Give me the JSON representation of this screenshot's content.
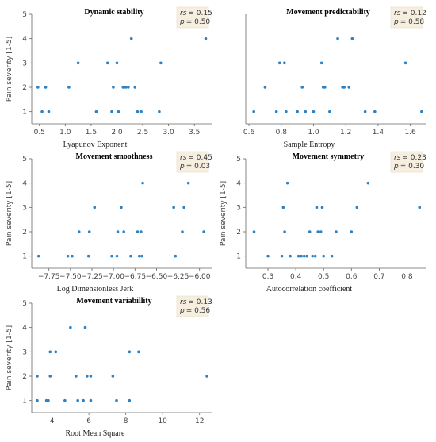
{
  "chart_data": [
    {
      "type": "scatter",
      "title": "Dynamic stability",
      "xlabel": "Lyapunov Exponent",
      "ylabel": "Pain severity [1-5]",
      "xlim": [
        0.35,
        3.85
      ],
      "ylim": [
        0.5,
        5
      ],
      "xticks": [
        "0.5",
        "1.0",
        "1.5",
        "2.0",
        "2.5",
        "3.0",
        "3.5"
      ],
      "xtick_values": [
        0.5,
        1.0,
        1.5,
        2.0,
        2.5,
        3.0,
        3.5
      ],
      "yticks": [
        "1",
        "2",
        "3",
        "4",
        "5"
      ],
      "stat_r_label": "rs",
      "stat_r_value": "= 0.15",
      "stat_p_label": "p",
      "stat_p_value": "= 0.50",
      "color": "#2e82c4",
      "points": [
        {
          "x": 0.47,
          "y": 2
        },
        {
          "x": 0.55,
          "y": 1
        },
        {
          "x": 0.62,
          "y": 2
        },
        {
          "x": 0.68,
          "y": 1
        },
        {
          "x": 1.07,
          "y": 2
        },
        {
          "x": 1.25,
          "y": 3
        },
        {
          "x": 1.6,
          "y": 1
        },
        {
          "x": 1.82,
          "y": 3
        },
        {
          "x": 1.9,
          "y": 1
        },
        {
          "x": 1.93,
          "y": 2
        },
        {
          "x": 2.0,
          "y": 3
        },
        {
          "x": 2.03,
          "y": 1
        },
        {
          "x": 2.12,
          "y": 2
        },
        {
          "x": 2.17,
          "y": 2
        },
        {
          "x": 2.22,
          "y": 2
        },
        {
          "x": 2.28,
          "y": 4
        },
        {
          "x": 2.35,
          "y": 2
        },
        {
          "x": 2.4,
          "y": 1
        },
        {
          "x": 2.47,
          "y": 1
        },
        {
          "x": 2.82,
          "y": 1
        },
        {
          "x": 2.85,
          "y": 3
        },
        {
          "x": 3.72,
          "y": 4
        }
      ]
    },
    {
      "type": "scatter",
      "title": "Movement predictability",
      "xlabel": "Sample Entropy",
      "ylabel": "",
      "xlim": [
        0.58,
        1.7
      ],
      "ylim": [
        0.5,
        5
      ],
      "xticks": [
        "0.6",
        "0.8",
        "1.0",
        "1.2",
        "1.4",
        "1.6"
      ],
      "xtick_values": [
        0.6,
        0.8,
        1.0,
        1.2,
        1.4,
        1.6
      ],
      "yticks": [],
      "stat_r_label": "rs",
      "stat_r_value": "= 0.12",
      "stat_p_label": "p",
      "stat_p_value": "= 0.58",
      "color": "#2e82c4",
      "points": [
        {
          "x": 0.63,
          "y": 1
        },
        {
          "x": 0.7,
          "y": 2
        },
        {
          "x": 0.77,
          "y": 1
        },
        {
          "x": 0.79,
          "y": 3
        },
        {
          "x": 0.82,
          "y": 3
        },
        {
          "x": 0.83,
          "y": 1
        },
        {
          "x": 0.9,
          "y": 1
        },
        {
          "x": 0.93,
          "y": 2
        },
        {
          "x": 0.95,
          "y": 1
        },
        {
          "x": 1.0,
          "y": 1
        },
        {
          "x": 1.05,
          "y": 3
        },
        {
          "x": 1.06,
          "y": 2
        },
        {
          "x": 1.07,
          "y": 2
        },
        {
          "x": 1.1,
          "y": 1
        },
        {
          "x": 1.15,
          "y": 4
        },
        {
          "x": 1.18,
          "y": 2
        },
        {
          "x": 1.19,
          "y": 2
        },
        {
          "x": 1.22,
          "y": 2
        },
        {
          "x": 1.24,
          "y": 4
        },
        {
          "x": 1.32,
          "y": 1
        },
        {
          "x": 1.38,
          "y": 1
        },
        {
          "x": 1.57,
          "y": 3
        },
        {
          "x": 1.67,
          "y": 1
        }
      ]
    },
    {
      "type": "scatter",
      "title": "Movement smoothness",
      "xlabel": "Log Dimensionless Jerk",
      "ylabel": "Pain severity [1-5]",
      "xlim": [
        -7.95,
        -5.85
      ],
      "ylim": [
        0.5,
        5
      ],
      "xticks": [
        "−7.75",
        "−7.50",
        "−7.25",
        "−7.00",
        "−6.75",
        "−6.50",
        "−6.25",
        "−6.00"
      ],
      "xtick_values": [
        -7.75,
        -7.5,
        -7.25,
        -7.0,
        -6.75,
        -6.5,
        -6.25,
        -6.0
      ],
      "yticks": [
        "1",
        "2",
        "3",
        "4",
        "5"
      ],
      "stat_r_label": "rs",
      "stat_r_value": "= 0.45",
      "stat_p_label": "p",
      "stat_p_value": "= 0.03",
      "color": "#2e82c4",
      "points": [
        {
          "x": -7.87,
          "y": 1
        },
        {
          "x": -7.53,
          "y": 1
        },
        {
          "x": -7.48,
          "y": 1
        },
        {
          "x": -7.4,
          "y": 2
        },
        {
          "x": -7.29,
          "y": 1
        },
        {
          "x": -7.28,
          "y": 2
        },
        {
          "x": -7.22,
          "y": 3
        },
        {
          "x": -7.02,
          "y": 1
        },
        {
          "x": -6.96,
          "y": 1
        },
        {
          "x": -6.95,
          "y": 2
        },
        {
          "x": -6.91,
          "y": 3
        },
        {
          "x": -6.88,
          "y": 2
        },
        {
          "x": -6.8,
          "y": 1
        },
        {
          "x": -6.72,
          "y": 2
        },
        {
          "x": -6.7,
          "y": 1
        },
        {
          "x": -6.68,
          "y": 2
        },
        {
          "x": -6.67,
          "y": 1
        },
        {
          "x": -6.66,
          "y": 4
        },
        {
          "x": -6.3,
          "y": 3
        },
        {
          "x": -6.28,
          "y": 1
        },
        {
          "x": -6.2,
          "y": 2
        },
        {
          "x": -6.18,
          "y": 3
        },
        {
          "x": -6.13,
          "y": 4
        },
        {
          "x": -5.95,
          "y": 2
        }
      ]
    },
    {
      "type": "scatter",
      "title": "Movement symmetry",
      "xlabel": "Autocorrelation coefficient",
      "ylabel": "Pain severity [1-5]",
      "xlim": [
        0.22,
        0.87
      ],
      "ylim": [
        0.5,
        5
      ],
      "xticks": [
        "0.3",
        "0.4",
        "0.5",
        "0.6",
        "0.7",
        "0.8"
      ],
      "xtick_values": [
        0.3,
        0.4,
        0.5,
        0.6,
        0.7,
        0.8
      ],
      "yticks": [
        "1",
        "2",
        "3",
        "4",
        "5"
      ],
      "stat_r_label": "rs",
      "stat_r_value": "= 0.23",
      "stat_p_label": "p",
      "stat_p_value": "= 0.30",
      "color": "#2e82c4",
      "points": [
        {
          "x": 0.25,
          "y": 2
        },
        {
          "x": 0.3,
          "y": 1
        },
        {
          "x": 0.35,
          "y": 1
        },
        {
          "x": 0.355,
          "y": 3
        },
        {
          "x": 0.36,
          "y": 2
        },
        {
          "x": 0.37,
          "y": 4
        },
        {
          "x": 0.38,
          "y": 1
        },
        {
          "x": 0.41,
          "y": 1
        },
        {
          "x": 0.42,
          "y": 1
        },
        {
          "x": 0.43,
          "y": 1
        },
        {
          "x": 0.44,
          "y": 1
        },
        {
          "x": 0.45,
          "y": 2
        },
        {
          "x": 0.46,
          "y": 1
        },
        {
          "x": 0.47,
          "y": 1
        },
        {
          "x": 0.475,
          "y": 3
        },
        {
          "x": 0.48,
          "y": 2
        },
        {
          "x": 0.49,
          "y": 2
        },
        {
          "x": 0.495,
          "y": 3
        },
        {
          "x": 0.5,
          "y": 1
        },
        {
          "x": 0.53,
          "y": 1
        },
        {
          "x": 0.545,
          "y": 2
        },
        {
          "x": 0.6,
          "y": 2
        },
        {
          "x": 0.62,
          "y": 3
        },
        {
          "x": 0.66,
          "y": 4
        },
        {
          "x": 0.845,
          "y": 3
        }
      ]
    },
    {
      "type": "scatter",
      "title": "Movement variabillity",
      "xlabel": "Root Mean Square",
      "ylabel": "Pain severity [1-5]",
      "xlim": [
        2.9,
        12.7
      ],
      "ylim": [
        0.5,
        5
      ],
      "xticks": [
        "4",
        "6",
        "8",
        "10",
        "12"
      ],
      "xtick_values": [
        4,
        6,
        8,
        10,
        12
      ],
      "yticks": [
        "1",
        "2",
        "3",
        "4",
        "5"
      ],
      "stat_r_label": "rs",
      "stat_r_value": "= 0.13",
      "stat_p_label": "p",
      "stat_p_value": "= 0.56",
      "color": "#2e82c4",
      "points": [
        {
          "x": 3.2,
          "y": 1
        },
        {
          "x": 3.2,
          "y": 2
        },
        {
          "x": 3.7,
          "y": 1
        },
        {
          "x": 3.8,
          "y": 1
        },
        {
          "x": 3.9,
          "y": 2
        },
        {
          "x": 3.9,
          "y": 3
        },
        {
          "x": 4.2,
          "y": 3
        },
        {
          "x": 4.7,
          "y": 1
        },
        {
          "x": 5.0,
          "y": 4
        },
        {
          "x": 5.3,
          "y": 2
        },
        {
          "x": 5.4,
          "y": 1
        },
        {
          "x": 5.7,
          "y": 1
        },
        {
          "x": 5.8,
          "y": 4
        },
        {
          "x": 5.9,
          "y": 2
        },
        {
          "x": 6.1,
          "y": 2
        },
        {
          "x": 6.1,
          "y": 1
        },
        {
          "x": 7.3,
          "y": 2
        },
        {
          "x": 7.5,
          "y": 1
        },
        {
          "x": 8.2,
          "y": 1
        },
        {
          "x": 8.2,
          "y": 3
        },
        {
          "x": 8.7,
          "y": 3
        },
        {
          "x": 12.4,
          "y": 2
        }
      ]
    }
  ]
}
